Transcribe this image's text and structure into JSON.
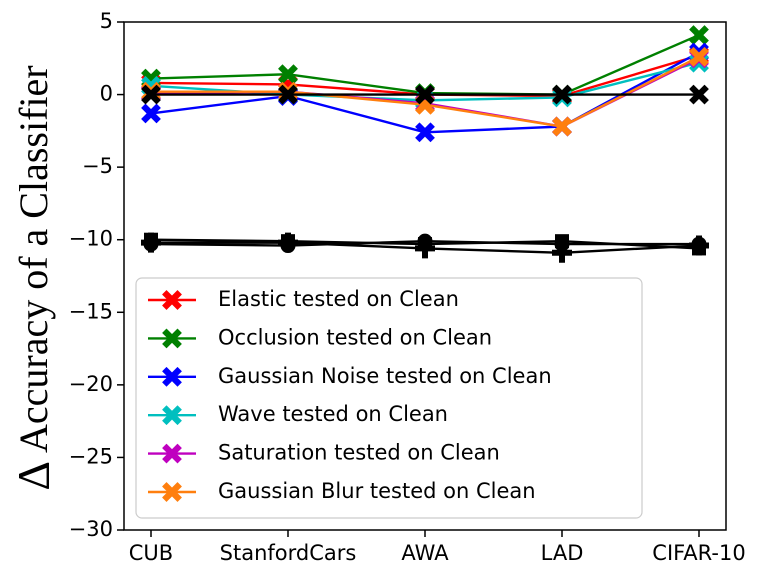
{
  "chart_data": {
    "type": "line",
    "title": "",
    "xlabel": "",
    "ylabel": "Δ Accuracy of a Classifier",
    "ylabel_symbol": "Δ",
    "ylabel_text": "Accuracy of a Classifier",
    "categories": [
      "CUB",
      "StanfordCars",
      "AWA",
      "LAD",
      "CIFAR-10"
    ],
    "ylim": [
      -30,
      5
    ],
    "yticks": [
      5,
      0,
      -5,
      -10,
      -15,
      -20,
      -25,
      -30
    ],
    "ytick_labels": [
      "5",
      "0",
      "−5",
      "−10",
      "−15",
      "−20",
      "−25",
      "−30"
    ],
    "legend_position": "lower-center",
    "series": [
      {
        "name": "Elastic tested on Clean",
        "color": "#ff0000",
        "marker": "x",
        "values": [
          0.8,
          0.7,
          0.0,
          -0.1,
          2.7
        ]
      },
      {
        "name": "Occlusion tested on Clean",
        "color": "#008000",
        "marker": "x",
        "values": [
          1.1,
          1.4,
          0.1,
          0.0,
          4.1
        ]
      },
      {
        "name": "Gaussian Noise tested on Clean",
        "color": "#0000ff",
        "marker": "x",
        "values": [
          -1.3,
          -0.1,
          -2.6,
          -2.2,
          2.9
        ]
      },
      {
        "name": "Wave tested on Clean",
        "color": "#00bfbf",
        "marker": "x",
        "values": [
          0.6,
          0.0,
          -0.4,
          -0.2,
          2.2
        ]
      },
      {
        "name": "Saturation tested on Clean",
        "color": "#bf00bf",
        "marker": "x",
        "values": [
          0.1,
          0.2,
          -0.6,
          -2.2,
          2.5
        ]
      },
      {
        "name": "Gaussian Blur tested on Clean",
        "color": "#ff7f0e",
        "marker": "x",
        "values": [
          0.2,
          0.2,
          -0.7,
          -2.2,
          2.6
        ]
      }
    ],
    "extra_series": [
      {
        "name": "baseline-x",
        "color": "#000000",
        "marker": "x",
        "values": [
          0,
          0,
          0,
          0,
          0
        ]
      },
      {
        "name": "black-square",
        "color": "#000000",
        "marker": "square",
        "values": [
          -10.0,
          -10.1,
          -10.3,
          -10.1,
          -10.6
        ]
      },
      {
        "name": "black-circle",
        "color": "#000000",
        "marker": "circle",
        "values": [
          -10.3,
          -10.4,
          -10.1,
          -10.3,
          -10.3
        ]
      },
      {
        "name": "black-plus",
        "color": "#000000",
        "marker": "plus",
        "values": [
          -10.2,
          -10.2,
          -10.6,
          -10.9,
          -10.4
        ]
      }
    ]
  }
}
